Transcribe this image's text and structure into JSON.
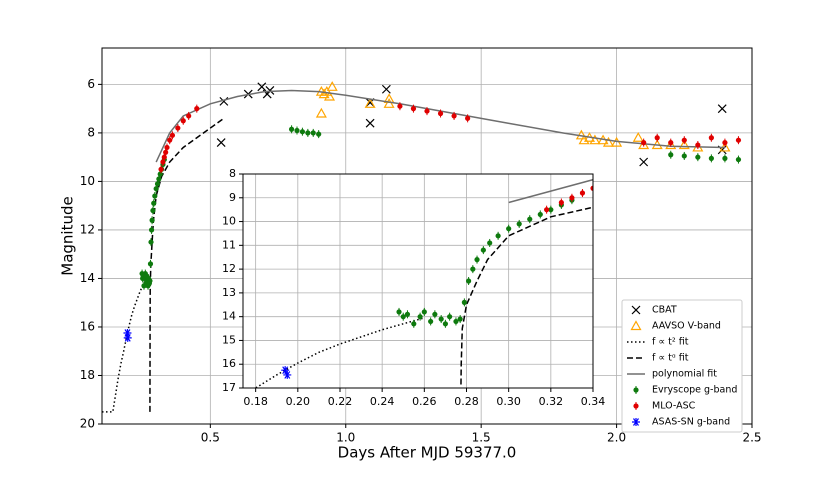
{
  "chart_data": {
    "type": "scatter",
    "x_label": "Days After MJD 59377.0",
    "y_label": "Magnitude",
    "xlim": [
      0.1,
      2.5
    ],
    "ylim": [
      20,
      4.5
    ],
    "xticks": [
      0.5,
      {
        "value": 1,
        "label": "1.0"
      },
      1.5,
      {
        "value": 2,
        "label": "2.0"
      },
      2.5
    ],
    "yticks": [
      6,
      8,
      10,
      12,
      14,
      16,
      18,
      20
    ],
    "grid": true,
    "legend": "lower right",
    "inset": {
      "xlim": [
        0.174,
        0.34
      ],
      "ylim": [
        17,
        8
      ],
      "xticks": [
        0.18,
        {
          "value": 0.2,
          "label": "0.20"
        },
        0.22,
        0.24,
        0.26,
        0.28,
        {
          "value": 0.3,
          "label": "0.30"
        },
        0.32,
        0.34
      ],
      "yticks": [
        8,
        9,
        10,
        11,
        12,
        13,
        14,
        15,
        16,
        17
      ]
    },
    "series": [
      {
        "name": "CBAT",
        "color": "#000000",
        "marker": "x",
        "x": [
          0.54,
          0.55,
          0.64,
          0.69,
          0.71,
          0.72,
          1.09,
          1.09,
          1.15,
          2.1,
          2.39,
          2.39
        ],
        "values": [
          8.4,
          6.7,
          6.4,
          6.1,
          6.4,
          6.25,
          6.75,
          7.6,
          6.2,
          9.2,
          7.0,
          8.7
        ]
      },
      {
        "name": "AAVSO V-band",
        "color": "#ffa500",
        "marker": "triangle",
        "x": [
          0.91,
          0.91,
          0.92,
          0.93,
          0.94,
          0.95,
          1.09,
          1.16,
          1.16,
          1.87,
          1.88,
          1.9,
          1.92,
          1.95,
          1.97,
          2.0,
          2.08,
          2.1,
          2.15,
          2.2,
          2.25,
          2.3,
          2.4
        ],
        "values": [
          6.3,
          7.2,
          6.4,
          6.3,
          6.5,
          6.1,
          6.8,
          6.8,
          6.6,
          8.1,
          8.3,
          8.2,
          8.3,
          8.3,
          8.4,
          8.4,
          8.2,
          8.5,
          8.5,
          8.5,
          8.5,
          8.6,
          8.6
        ]
      },
      {
        "name": "f ∝ t² fit",
        "color": "#000000",
        "line": "dotted",
        "x": [
          0.1,
          0.14,
          0.16,
          0.17,
          0.18,
          0.19,
          0.2,
          0.21,
          0.22,
          0.23,
          0.24,
          0.25,
          0.26
        ],
        "values": [
          19.5,
          19.5,
          18.1,
          17.5,
          17.0,
          16.45,
          15.95,
          15.5,
          15.15,
          14.85,
          14.55,
          14.3,
          14.05
        ]
      },
      {
        "name": "f ∝ tᵅ fit",
        "color": "#000000",
        "line": "dashed",
        "x": [
          0.277,
          0.2775,
          0.278,
          0.28,
          0.285,
          0.29,
          0.3,
          0.32,
          0.35,
          0.4,
          0.5,
          0.55
        ],
        "values": [
          19.5,
          16,
          14.5,
          13.5,
          12.5,
          11.6,
          10.6,
          9.8,
          9.2,
          8.6,
          7.8,
          7.4
        ]
      },
      {
        "name": "polynomial fit",
        "color": "#6e6e6e",
        "line": "solid",
        "x": [
          0.3,
          0.35,
          0.4,
          0.5,
          0.6,
          0.7,
          0.8,
          0.9,
          1.0,
          1.2,
          1.4,
          1.6,
          1.8,
          2.0,
          2.2,
          2.4
        ],
        "values": [
          9.2,
          8.0,
          7.3,
          6.8,
          6.5,
          6.3,
          6.25,
          6.3,
          6.45,
          6.8,
          7.2,
          7.6,
          8.0,
          8.35,
          8.55,
          8.6
        ]
      },
      {
        "name": "Evryscope g-band",
        "color": "#0e7a0e",
        "marker": "dot",
        "x": [
          0.248,
          0.25,
          0.252,
          0.255,
          0.258,
          0.26,
          0.263,
          0.265,
          0.268,
          0.27,
          0.272,
          0.275,
          0.277,
          0.279,
          0.281,
          0.283,
          0.285,
          0.288,
          0.291,
          0.295,
          0.3,
          0.305,
          0.31,
          0.315,
          0.32,
          0.325,
          0.33,
          0.8,
          0.82,
          0.84,
          0.86,
          0.88,
          0.9,
          2.2,
          2.25,
          2.3,
          2.35,
          2.4,
          2.45
        ],
        "values": [
          13.8,
          14.0,
          13.9,
          14.3,
          14.0,
          13.8,
          14.2,
          13.9,
          14.1,
          14.3,
          14.0,
          14.2,
          14.1,
          13.4,
          12.5,
          12.0,
          11.6,
          11.2,
          10.9,
          10.6,
          10.3,
          10.1,
          9.9,
          9.7,
          9.5,
          9.3,
          9.1,
          7.85,
          7.9,
          7.95,
          8.0,
          8.0,
          8.05,
          8.9,
          8.95,
          9.0,
          9.05,
          9.05,
          9.1
        ]
      },
      {
        "name": "MLO-ASC",
        "color": "#e00000",
        "marker": "dot",
        "x": [
          0.318,
          0.325,
          0.33,
          0.335,
          0.34,
          0.35,
          0.36,
          0.38,
          0.4,
          0.42,
          0.45,
          1.2,
          1.25,
          1.3,
          1.35,
          1.4,
          1.45,
          2.1,
          2.15,
          2.2,
          2.25,
          2.3,
          2.35,
          2.4,
          2.45
        ],
        "values": [
          9.5,
          9.2,
          9.0,
          8.8,
          8.6,
          8.3,
          8.1,
          7.8,
          7.5,
          7.3,
          7.0,
          6.9,
          7.0,
          7.1,
          7.2,
          7.3,
          7.4,
          8.4,
          8.2,
          8.4,
          8.3,
          8.5,
          8.2,
          8.4,
          8.3
        ]
      },
      {
        "name": "ASAS-SN g-band",
        "color": "#0000ff",
        "marker": "star",
        "x": [
          0.194,
          0.195
        ],
        "values": [
          16.25,
          16.45
        ]
      }
    ]
  }
}
